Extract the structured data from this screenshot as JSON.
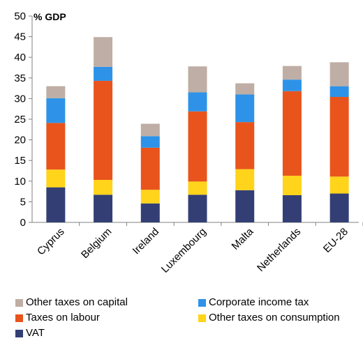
{
  "chart_data": {
    "type": "bar",
    "stacked": true,
    "ylabel": "% GDP",
    "ylim": [
      0,
      50
    ],
    "yticks": [
      0,
      5,
      10,
      15,
      20,
      25,
      30,
      35,
      40,
      45,
      50
    ],
    "grid": false,
    "legend_position": "bottom",
    "categories": [
      "Cyprus",
      "Belgium",
      "Ireland",
      "Luxembourg",
      "Malta",
      "Netherlands",
      "EU-28"
    ],
    "series": [
      {
        "name": "VAT",
        "color": "#333f74",
        "values": [
          8.5,
          6.7,
          4.6,
          6.7,
          7.8,
          6.6,
          7.0
        ]
      },
      {
        "name": "Other taxes on consumption",
        "color": "#ffd41a",
        "values": [
          4.3,
          3.6,
          3.3,
          3.2,
          5.1,
          4.7,
          4.1
        ]
      },
      {
        "name": "Taxes on labour",
        "color": "#e8541c",
        "values": [
          11.3,
          24.0,
          10.2,
          17.0,
          11.4,
          20.5,
          19.3
        ]
      },
      {
        "name": "Corporate income tax",
        "color": "#2e93e8",
        "values": [
          6.0,
          3.4,
          2.8,
          4.6,
          6.7,
          2.8,
          2.6
        ]
      },
      {
        "name": "Other taxes on capital",
        "color": "#bfaea5",
        "values": [
          2.9,
          7.2,
          3.0,
          6.3,
          2.7,
          3.3,
          5.8
        ]
      }
    ],
    "legend_order": [
      "Other taxes on capital",
      "Corporate income tax",
      "Taxes on labour",
      "Other taxes on consumption",
      "VAT"
    ]
  }
}
